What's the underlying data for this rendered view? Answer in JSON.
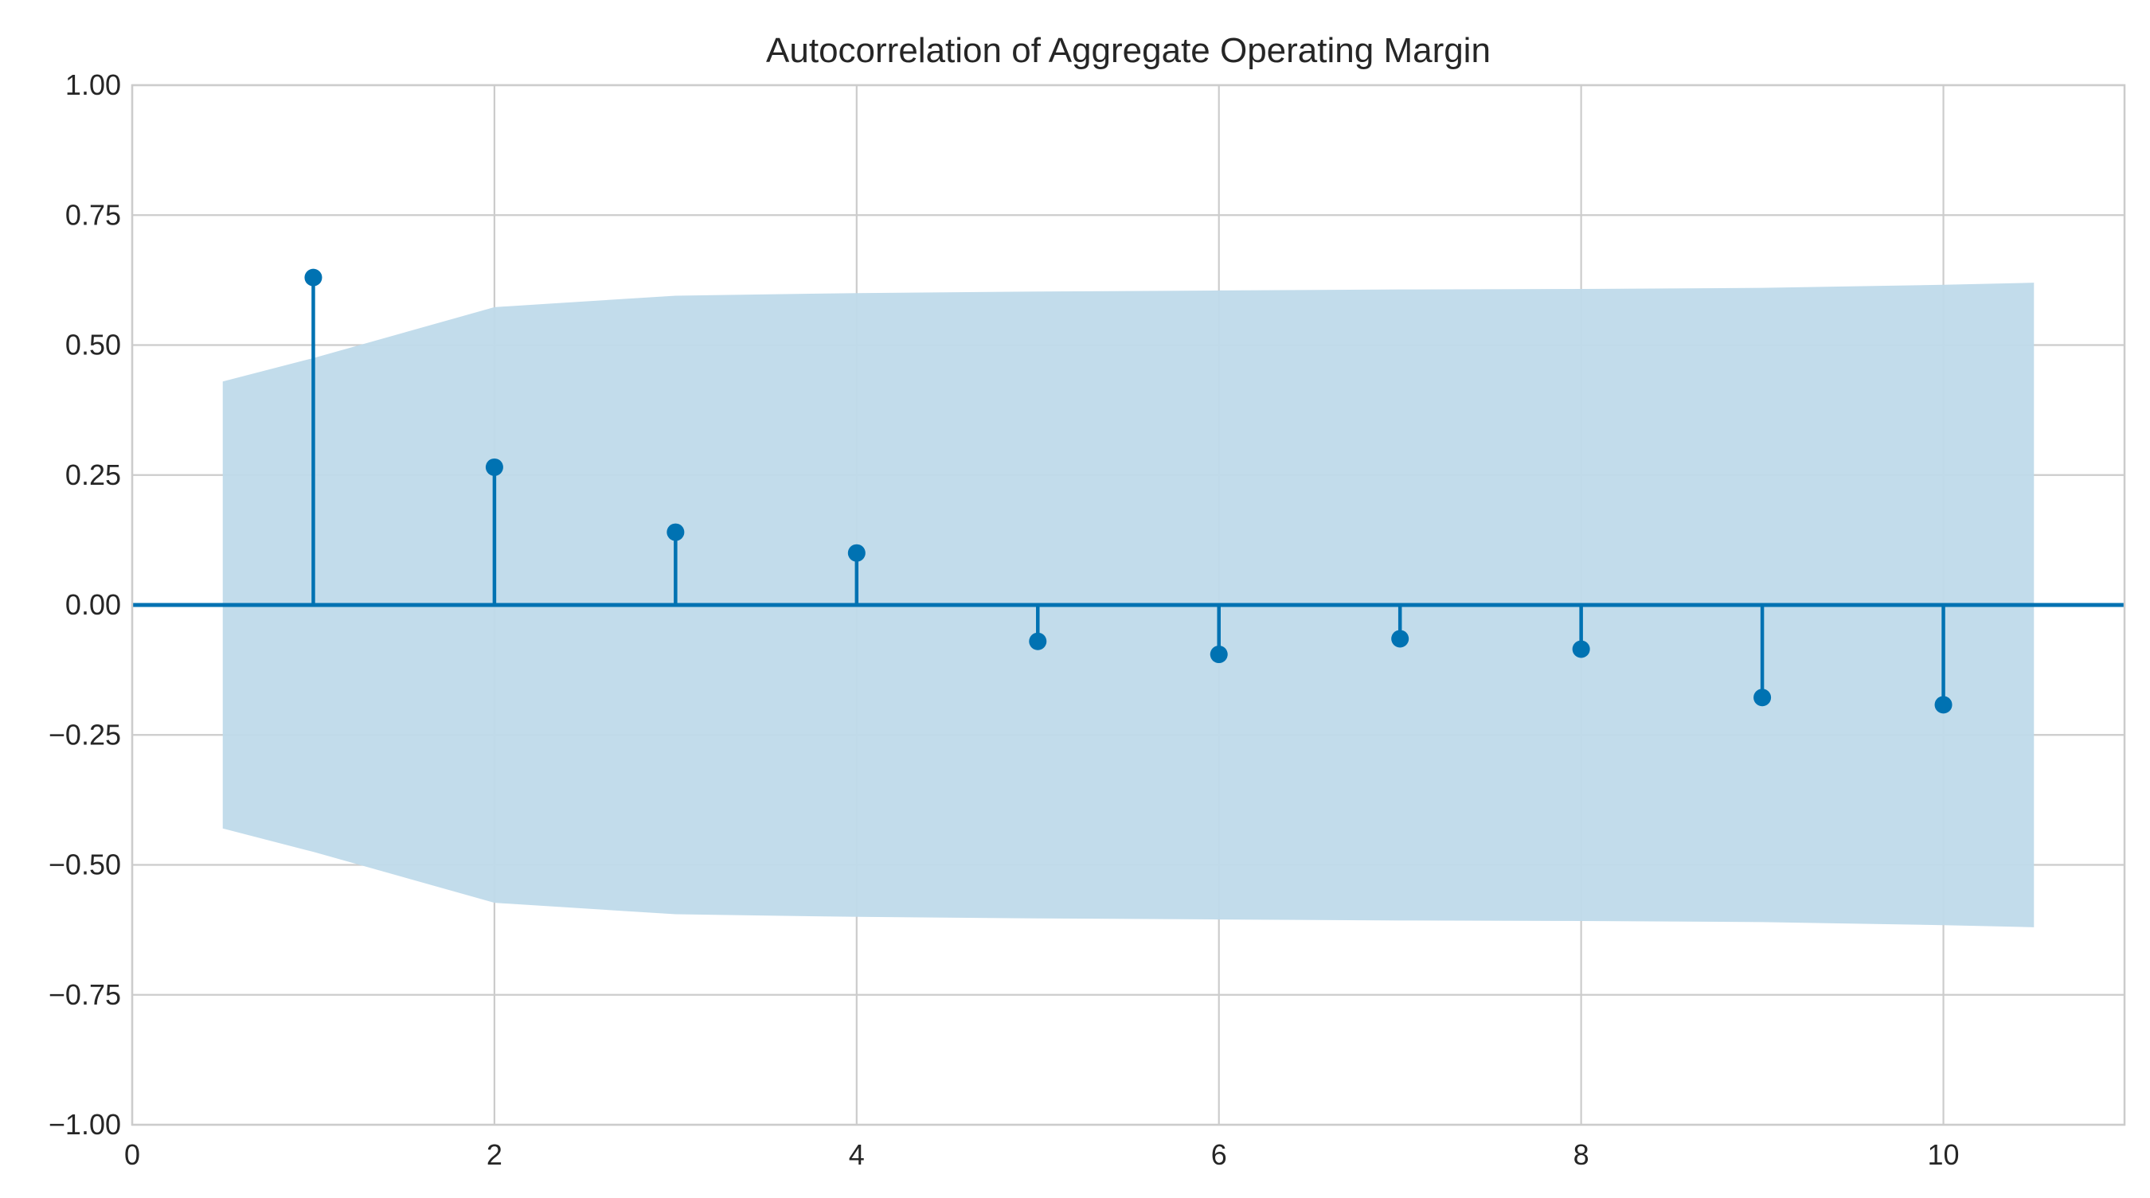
{
  "chart_data": {
    "type": "stem",
    "title": "Autocorrelation of Aggregate Operating Margin",
    "xlabel": "",
    "ylabel": "",
    "xlim": [
      0,
      11
    ],
    "ylim": [
      -1.0,
      1.0
    ],
    "grid": true,
    "legend": "none",
    "xticks": [
      {
        "value": 0,
        "label": "0"
      },
      {
        "value": 2,
        "label": "2"
      },
      {
        "value": 4,
        "label": "4"
      },
      {
        "value": 6,
        "label": "6"
      },
      {
        "value": 8,
        "label": "8"
      },
      {
        "value": 10,
        "label": "10"
      }
    ],
    "yticks": [
      {
        "value": 1.0,
        "label": "1.00"
      },
      {
        "value": 0.75,
        "label": "0.75"
      },
      {
        "value": 0.5,
        "label": "0.50"
      },
      {
        "value": 0.25,
        "label": "0.25"
      },
      {
        "value": 0.0,
        "label": "0.00"
      },
      {
        "value": -0.25,
        "label": "−0.25"
      },
      {
        "value": -0.5,
        "label": "−0.50"
      },
      {
        "value": -0.75,
        "label": "−0.75"
      },
      {
        "value": -1.0,
        "label": "−1.00"
      }
    ],
    "lags": [
      1,
      2,
      3,
      4,
      5,
      6,
      7,
      8,
      9,
      10
    ],
    "values": [
      0.63,
      0.265,
      0.14,
      0.1,
      -0.07,
      -0.095,
      -0.065,
      -0.085,
      -0.178,
      -0.192
    ],
    "confidence_band": {
      "x": [
        0.5,
        1,
        2,
        3,
        4,
        5,
        6,
        7,
        8,
        9,
        10,
        10.5
      ],
      "upper": [
        0.43,
        0.475,
        0.573,
        0.595,
        0.6,
        0.603,
        0.605,
        0.607,
        0.608,
        0.61,
        0.616,
        0.62
      ],
      "lower": [
        -0.43,
        -0.475,
        -0.573,
        -0.595,
        -0.6,
        -0.603,
        -0.605,
        -0.607,
        -0.608,
        -0.61,
        -0.616,
        -0.62
      ]
    },
    "colors": {
      "stem": "#0072b2",
      "band": "#bfdaea",
      "grid": "#cccccc",
      "spine": "#cccccc",
      "zero_line": "#0072b2"
    }
  }
}
